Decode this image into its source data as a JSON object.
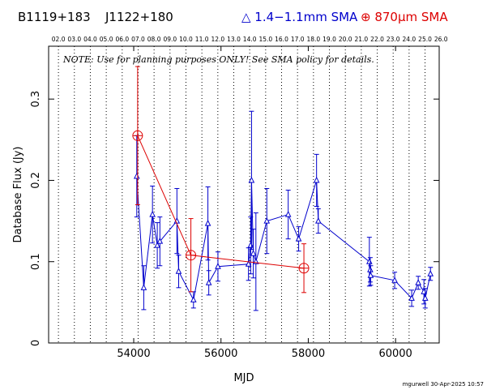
{
  "header": {
    "source_name": "B1119+183",
    "alt_name": "J1122+180",
    "legend_band1": "△ 1.4−1.1mm SMA",
    "legend_band2": "⊕ 870μm SMA"
  },
  "note": "NOTE: Use for planning purposes ONLY!  See SMA policy for details.",
  "footer": "mgurwell 30-Apr-2025 10:57",
  "colors": {
    "band1": "#0000cc",
    "band2": "#dd0000",
    "grid": "#000000"
  },
  "chart_data": {
    "type": "scatter",
    "title": "",
    "xlabel": "MJD",
    "ylabel": "Database Flux (Jy)",
    "xlim": [
      52050,
      61000
    ],
    "ylim": [
      0,
      0.365
    ],
    "x_ticks": [
      54000,
      56000,
      58000,
      60000
    ],
    "y_ticks": [
      {
        "value": 0,
        "label": "0"
      },
      {
        "value": 0.1,
        "label": "0.1"
      },
      {
        "value": 0.2,
        "label": "0.2"
      },
      {
        "value": 0.3,
        "label": "0.3"
      }
    ],
    "top_axis_labels": [
      "02.0",
      "03.0",
      "04.0",
      "05.0",
      "06.0",
      "07.0",
      "08.0",
      "09.0",
      "10.0",
      "11.0",
      "12.0",
      "13.0",
      "14.0",
      "15.0",
      "16.0",
      "17.0",
      "18.0",
      "19.0",
      "20.0",
      "21.0",
      "22.0",
      "23.0",
      "24.0",
      "25.0",
      "26.0"
    ],
    "top_axis_start_mjd": 52275,
    "top_axis_step_mjd": 365.25,
    "grid": "vertical dotted at year boundaries",
    "series": [
      {
        "name": "1.4−1.1mm SMA",
        "marker": "triangle",
        "points": [
          {
            "x": 54070,
            "y": 0.205,
            "err": 0.05
          },
          {
            "x": 54230,
            "y": 0.068,
            "err": 0.027
          },
          {
            "x": 54430,
            "y": 0.158,
            "err": 0.035
          },
          {
            "x": 54540,
            "y": 0.12,
            "err": 0.028
          },
          {
            "x": 54600,
            "y": 0.125,
            "err": 0.03
          },
          {
            "x": 54990,
            "y": 0.15,
            "err": 0.04
          },
          {
            "x": 55030,
            "y": 0.088,
            "err": 0.02
          },
          {
            "x": 55370,
            "y": 0.053,
            "err": 0.01
          },
          {
            "x": 55700,
            "y": 0.147,
            "err": 0.045
          },
          {
            "x": 55720,
            "y": 0.074,
            "err": 0.015
          },
          {
            "x": 55930,
            "y": 0.094,
            "err": 0.018
          },
          {
            "x": 56630,
            "y": 0.097,
            "err": 0.02
          },
          {
            "x": 56680,
            "y": 0.12,
            "err": 0.035
          },
          {
            "x": 56700,
            "y": 0.2,
            "err": 0.085
          },
          {
            "x": 56740,
            "y": 0.11,
            "err": 0.03
          },
          {
            "x": 56800,
            "y": 0.1,
            "err": 0.06
          },
          {
            "x": 57050,
            "y": 0.15,
            "err": 0.04
          },
          {
            "x": 57540,
            "y": 0.158,
            "err": 0.03
          },
          {
            "x": 57780,
            "y": 0.128,
            "err": 0.015
          },
          {
            "x": 58190,
            "y": 0.2,
            "err": 0.032
          },
          {
            "x": 58230,
            "y": 0.15,
            "err": 0.015
          },
          {
            "x": 59400,
            "y": 0.1,
            "err": 0.03
          },
          {
            "x": 59420,
            "y": 0.09,
            "err": 0.015
          },
          {
            "x": 59430,
            "y": 0.083,
            "err": 0.012
          },
          {
            "x": 59980,
            "y": 0.077,
            "err": 0.01
          },
          {
            "x": 60370,
            "y": 0.055,
            "err": 0.01
          },
          {
            "x": 60520,
            "y": 0.074,
            "err": 0.008
          },
          {
            "x": 60650,
            "y": 0.063,
            "err": 0.015
          },
          {
            "x": 60680,
            "y": 0.055,
            "err": 0.012
          },
          {
            "x": 60800,
            "y": 0.085,
            "err": 0.008
          }
        ]
      },
      {
        "name": "870μm SMA",
        "marker": "circle-plus",
        "points": [
          {
            "x": 54090,
            "y": 0.255,
            "err": 0.085
          },
          {
            "x": 55310,
            "y": 0.108,
            "err": 0.045
          },
          {
            "x": 57900,
            "y": 0.092,
            "err": 0.03
          }
        ]
      }
    ]
  }
}
